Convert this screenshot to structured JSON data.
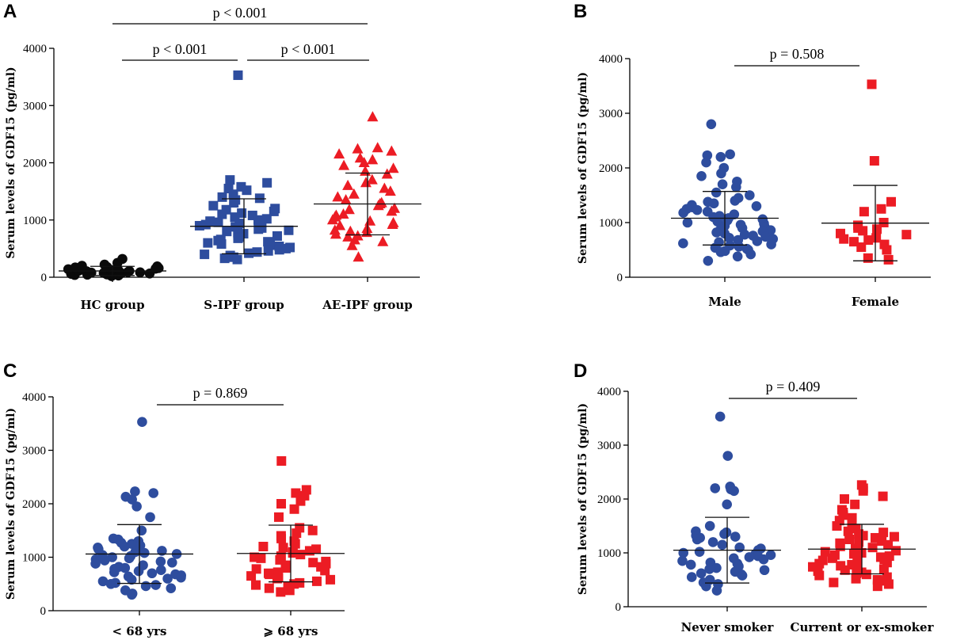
{
  "colors": {
    "black": "#0a0a0a",
    "blue": "#2e4d9e",
    "red": "#ec1c24"
  },
  "chart_data": [
    {
      "panel": "A",
      "type": "scatter",
      "ylabel": "Serum levels of GDF15 (pg/ml)",
      "ylim": [
        0,
        4000
      ],
      "yticks": [
        0,
        1000,
        2000,
        3000,
        4000
      ],
      "categories": [
        "HC group",
        "S-IPF group",
        "AE-IPF group"
      ],
      "series": [
        {
          "name": "HC group",
          "marker": "circle",
          "color": "black",
          "mean": 110,
          "sd": 80,
          "values": [
            20,
            30,
            40,
            45,
            50,
            55,
            60,
            65,
            70,
            75,
            80,
            85,
            90,
            95,
            100,
            105,
            110,
            115,
            120,
            125,
            130,
            140,
            150,
            160,
            170,
            180,
            190,
            200,
            220,
            250,
            320
          ]
        },
        {
          "name": "S-IPF group",
          "marker": "square",
          "color": "blue",
          "mean": 890,
          "sd": 480,
          "values": [
            3530,
            1700,
            1650,
            1580,
            1550,
            1520,
            1450,
            1400,
            1380,
            1350,
            1300,
            1250,
            1200,
            1180,
            1150,
            1120,
            1100,
            1080,
            1050,
            1020,
            1000,
            980,
            960,
            940,
            920,
            900,
            880,
            860,
            840,
            820,
            800,
            780,
            760,
            740,
            720,
            700,
            680,
            660,
            640,
            620,
            600,
            580,
            560,
            540,
            520,
            500,
            480,
            460,
            440,
            420,
            400,
            380,
            350,
            330,
            310
          ]
        },
        {
          "name": "AE-IPF group",
          "marker": "triangle",
          "color": "red",
          "mean": 1280,
          "sd": 540,
          "values": [
            2800,
            2260,
            2240,
            2200,
            2150,
            2080,
            2050,
            2000,
            1950,
            1900,
            1850,
            1800,
            1700,
            1650,
            1600,
            1550,
            1500,
            1450,
            1400,
            1350,
            1300,
            1280,
            1250,
            1200,
            1180,
            1150,
            1100,
            1080,
            1050,
            1000,
            980,
            950,
            920,
            900,
            850,
            820,
            800,
            780,
            750,
            720,
            700,
            650,
            620,
            550,
            350
          ]
        }
      ],
      "comparisons": [
        {
          "label": "p < 0.001",
          "from": 0,
          "to": 2
        },
        {
          "label": "p < 0.001",
          "from": 0,
          "to": 1
        },
        {
          "label": "p < 0.001",
          "from": 1,
          "to": 2
        }
      ]
    },
    {
      "panel": "B",
      "type": "scatter",
      "ylabel": "Serum levels of GDF15 (pg/ml)",
      "ylim": [
        0,
        4000
      ],
      "yticks": [
        0,
        1000,
        2000,
        3000,
        4000
      ],
      "categories": [
        "Male",
        "Female"
      ],
      "series": [
        {
          "name": "Male",
          "marker": "circle",
          "color": "blue",
          "mean": 1080,
          "sd": 490,
          "values": [
            2800,
            2250,
            2230,
            2200,
            2100,
            2000,
            1900,
            1850,
            1750,
            1700,
            1650,
            1550,
            1500,
            1450,
            1400,
            1380,
            1350,
            1320,
            1300,
            1280,
            1250,
            1230,
            1200,
            1180,
            1150,
            1120,
            1100,
            1080,
            1060,
            1040,
            1020,
            1000,
            980,
            960,
            940,
            920,
            900,
            880,
            860,
            840,
            820,
            800,
            780,
            760,
            740,
            720,
            700,
            680,
            660,
            640,
            620,
            600,
            580,
            560,
            540,
            520,
            500,
            480,
            460,
            420,
            380,
            300
          ]
        },
        {
          "name": "Female",
          "marker": "square",
          "color": "red",
          "mean": 990,
          "sd": 690,
          "values": [
            3530,
            2130,
            1380,
            1250,
            1200,
            1000,
            950,
            900,
            880,
            850,
            800,
            780,
            720,
            700,
            680,
            650,
            600,
            550,
            500,
            350,
            320
          ]
        }
      ],
      "comparisons": [
        {
          "label": "p = 0.508",
          "from": 0,
          "to": 1
        }
      ]
    },
    {
      "panel": "C",
      "type": "scatter",
      "ylabel": "Serum levels of GDF15 (pg/ml)",
      "ylim": [
        0,
        4000
      ],
      "yticks": [
        0,
        1000,
        2000,
        3000,
        4000
      ],
      "categories": [
        "< 68 yrs",
        "⩾ 68 yrs"
      ],
      "series": [
        {
          "name": "< 68 yrs",
          "marker": "circle",
          "color": "blue",
          "mean": 1060,
          "sd": 550,
          "values": [
            3530,
            2230,
            2200,
            2130,
            2080,
            1950,
            1750,
            1500,
            1350,
            1330,
            1300,
            1270,
            1250,
            1220,
            1200,
            1180,
            1150,
            1120,
            1100,
            1080,
            1060,
            1040,
            1020,
            1000,
            980,
            960,
            940,
            920,
            900,
            880,
            850,
            820,
            800,
            780,
            760,
            740,
            720,
            700,
            680,
            660,
            640,
            620,
            600,
            580,
            550,
            520,
            500,
            480,
            460,
            420,
            380,
            320,
            300
          ]
        },
        {
          "name": "⩾ 68 yrs",
          "marker": "square",
          "color": "red",
          "mean": 1070,
          "sd": 530,
          "values": [
            2800,
            2260,
            2200,
            2150,
            2050,
            2000,
            1900,
            1750,
            1550,
            1500,
            1450,
            1400,
            1350,
            1300,
            1250,
            1200,
            1180,
            1150,
            1120,
            1100,
            1080,
            1050,
            1020,
            1000,
            980,
            950,
            920,
            900,
            880,
            850,
            820,
            800,
            780,
            750,
            720,
            700,
            680,
            650,
            620,
            600,
            580,
            550,
            520,
            500,
            480,
            450,
            420,
            380,
            350
          ]
        }
      ],
      "comparisons": [
        {
          "label": "p = 0.869",
          "from": 0,
          "to": 1
        }
      ]
    },
    {
      "panel": "D",
      "type": "scatter",
      "ylabel": "Serum levels of GDF15 (pg/ml)",
      "ylim": [
        0,
        4000
      ],
      "yticks": [
        0,
        1000,
        2000,
        3000,
        4000
      ],
      "categories": [
        "Never smoker",
        "Current or ex-smoker"
      ],
      "series": [
        {
          "name": "Never smoker",
          "marker": "circle",
          "color": "blue",
          "mean": 1050,
          "sd": 610,
          "values": [
            3530,
            2800,
            2230,
            2200,
            2180,
            2150,
            1900,
            1500,
            1400,
            1380,
            1350,
            1320,
            1300,
            1280,
            1250,
            1200,
            1150,
            1100,
            1080,
            1050,
            1020,
            1000,
            980,
            960,
            940,
            920,
            900,
            880,
            850,
            820,
            800,
            780,
            750,
            720,
            700,
            680,
            650,
            620,
            600,
            580,
            550,
            500,
            450,
            420,
            380,
            300
          ]
        },
        {
          "name": "Current or ex-smoker",
          "marker": "square",
          "color": "red",
          "mean": 1070,
          "sd": 460,
          "values": [
            2260,
            2200,
            2150,
            2050,
            2000,
            1900,
            1800,
            1750,
            1700,
            1650,
            1600,
            1550,
            1500,
            1450,
            1400,
            1380,
            1350,
            1320,
            1300,
            1280,
            1250,
            1220,
            1200,
            1180,
            1150,
            1120,
            1100,
            1080,
            1060,
            1040,
            1020,
            1000,
            980,
            960,
            940,
            920,
            900,
            880,
            860,
            840,
            820,
            800,
            780,
            760,
            740,
            720,
            700,
            680,
            660,
            640,
            620,
            600,
            580,
            550,
            520,
            500,
            480,
            450,
            420,
            380
          ]
        }
      ],
      "comparisons": [
        {
          "label": "p = 0.409",
          "from": 0,
          "to": 1
        }
      ]
    }
  ]
}
